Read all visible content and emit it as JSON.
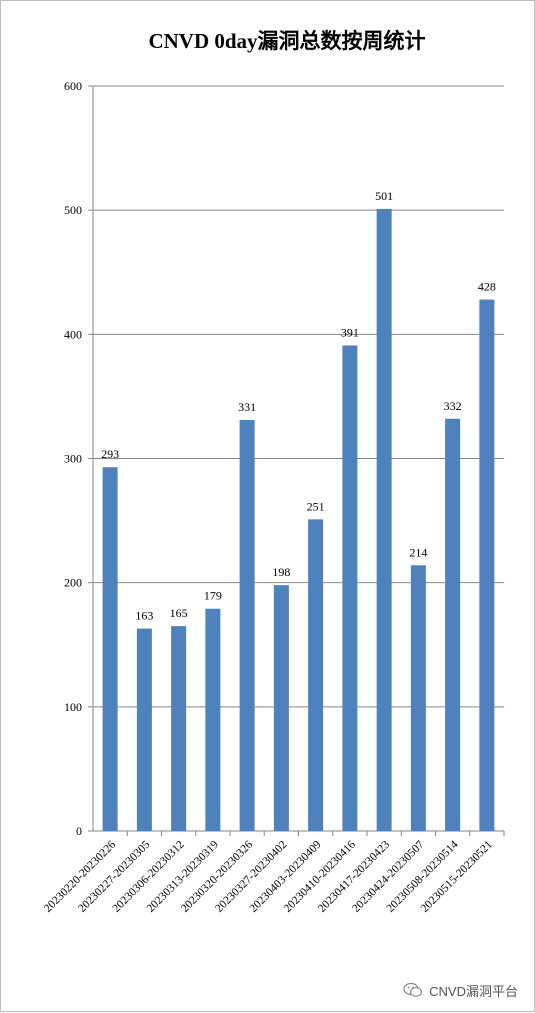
{
  "chart_data": {
    "type": "bar",
    "title": "CNVD 0day漏洞总数按周统计",
    "categories": [
      "20230220-20230226",
      "20230227-20230305",
      "20230306-20230312",
      "20230313-20230319",
      "20230320-20230326",
      "20230327-20230402",
      "20230403-20230409",
      "20230410-20230416",
      "20230417-20230423",
      "20230424-20230507",
      "20230508-20230514",
      "20230515-20230521"
    ],
    "values": [
      293,
      163,
      165,
      179,
      331,
      198,
      251,
      391,
      501,
      214,
      332,
      428
    ],
    "ylim": [
      0,
      600
    ],
    "yticks": [
      0,
      100,
      200,
      300,
      400,
      500,
      600
    ],
    "xlabel": "",
    "ylabel": "",
    "grid": true,
    "bar_color": "#4f81bd",
    "data_labels": true
  },
  "watermark": {
    "icon": "wechat-icon",
    "text": "CNVD漏洞平台"
  }
}
